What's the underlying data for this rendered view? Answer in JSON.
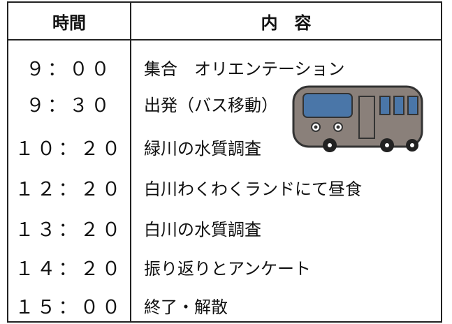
{
  "table": {
    "header": [
      "時間",
      "内　容"
    ],
    "rows": [
      [
        "９：００",
        "集合　オリエンテーション"
      ],
      [
        "９：３０",
        "出発（バス移動）"
      ],
      [
        "１０：２０",
        "緑川の水質調査"
      ],
      [
        "１２：２０",
        "白川わくわくランドにて昼食"
      ],
      [
        "１３：２０",
        "白川の水質調査"
      ],
      [
        "１４：２０",
        "振り返りとアンケート"
      ],
      [
        "１５：００",
        "終了・解散"
      ]
    ]
  }
}
